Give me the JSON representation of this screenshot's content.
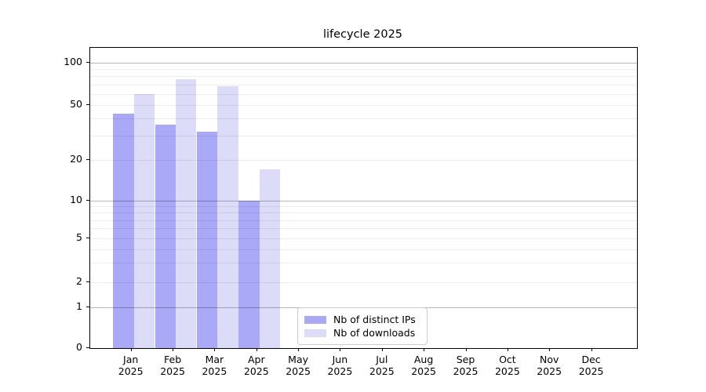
{
  "title": "lifecycle 2025",
  "chart_data": {
    "type": "bar",
    "title": "lifecycle 2025",
    "categories": [
      "Jan",
      "Feb",
      "Mar",
      "Apr",
      "May",
      "Jun",
      "Jul",
      "Aug",
      "Sep",
      "Oct",
      "Nov",
      "Dec"
    ],
    "year_label": "2025",
    "series": [
      {
        "name": "Nb of distinct IPs",
        "color": "#a9a9f8",
        "values": [
          43,
          36,
          32,
          10,
          0,
          0,
          0,
          0,
          0,
          0,
          0,
          0
        ]
      },
      {
        "name": "Nb of downloads",
        "color": "#dcdcf8",
        "values": [
          60,
          76,
          68,
          17,
          0,
          0,
          0,
          0,
          0,
          0,
          0,
          0
        ]
      }
    ],
    "xlabel": "",
    "ylabel": "",
    "yscale": "symlog",
    "yticks": [
      0,
      1,
      2,
      5,
      10,
      20,
      50,
      100
    ],
    "minor_grid_values": [
      3,
      4,
      6,
      7,
      8,
      9,
      30,
      40,
      60,
      70,
      80,
      90
    ],
    "major_grid_values": [
      1,
      10,
      100
    ],
    "ylim": [
      0,
      128
    ],
    "grid": "both",
    "legend_position": "lower center inside axes"
  },
  "legend": {
    "items": [
      {
        "label": "Nb of distinct IPs",
        "color": "#a9a9f8"
      },
      {
        "label": "Nb of downloads",
        "color": "#dcdcf8"
      }
    ]
  }
}
